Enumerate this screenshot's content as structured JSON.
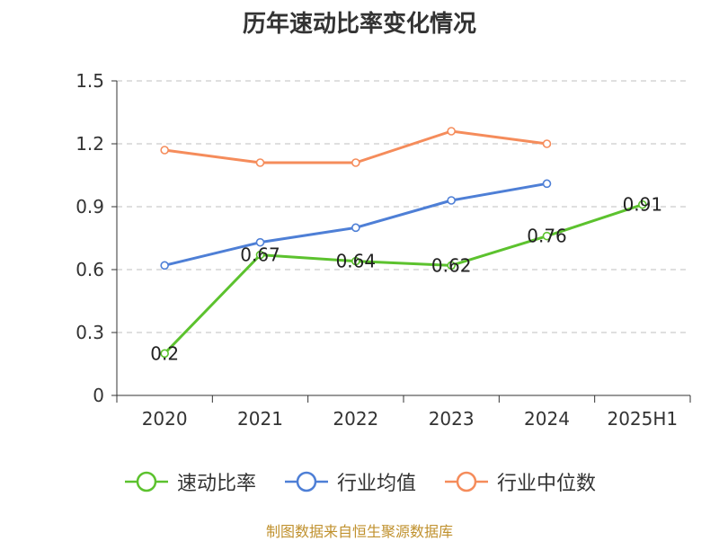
{
  "chart_data": {
    "type": "line",
    "title": "历年速动比率变化情况",
    "categories": [
      "2020",
      "2021",
      "2022",
      "2023",
      "2024",
      "2025H1"
    ],
    "y_ticks": [
      "0",
      "0.3",
      "0.6",
      "0.9",
      "1.2",
      "1.5"
    ],
    "ylim": [
      0,
      1.5
    ],
    "grid": true,
    "legend_position": "bottom",
    "series": [
      {
        "name": "速动比率",
        "color": "#5cc22e",
        "values": [
          0.2,
          0.67,
          0.64,
          0.62,
          0.76,
          0.91
        ],
        "labels": [
          "0.2",
          "0.67",
          "0.64",
          "0.62",
          "0.76",
          "0.91"
        ]
      },
      {
        "name": "行业均值",
        "color": "#4e7fd6",
        "values": [
          0.62,
          0.73,
          0.8,
          0.93,
          1.01,
          null
        ]
      },
      {
        "name": "行业中位数",
        "color": "#f58c5b",
        "values": [
          1.17,
          1.11,
          1.11,
          1.26,
          1.2,
          null
        ]
      }
    ]
  },
  "source": "制图数据来自恒生聚源数据库"
}
